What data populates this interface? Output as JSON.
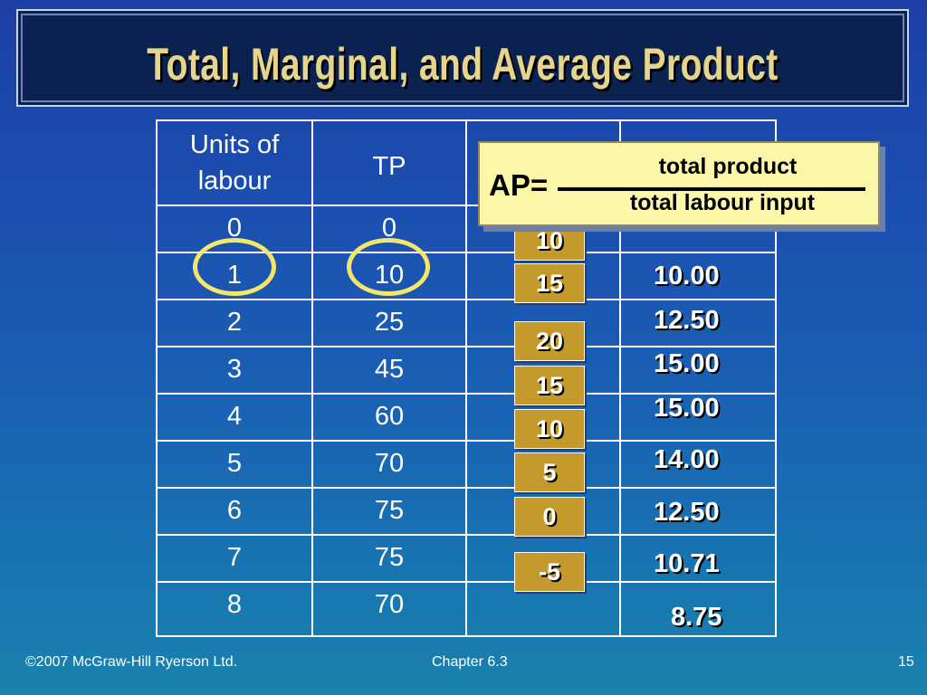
{
  "slide": {
    "title": "Total, Marginal, and Average Product",
    "footer": {
      "copyright": "©2007 McGraw-Hill Ryerson Ltd.",
      "chapter": "Chapter 6.3",
      "page_number": "15"
    }
  },
  "table": {
    "headers": [
      "Units of labour",
      "TP",
      "",
      ""
    ],
    "header_lines": [
      "Units of",
      "labour"
    ],
    "rows": [
      {
        "units": "0",
        "tp": "0"
      },
      {
        "units": "1",
        "tp": "10"
      },
      {
        "units": "2",
        "tp": "25"
      },
      {
        "units": "3",
        "tp": "45"
      },
      {
        "units": "4",
        "tp": "60"
      },
      {
        "units": "5",
        "tp": "70"
      },
      {
        "units": "6",
        "tp": "75"
      },
      {
        "units": "7",
        "tp": "75"
      },
      {
        "units": "8",
        "tp": "70"
      }
    ]
  },
  "marginal_product": [
    "10",
    "15",
    "20",
    "15",
    "10",
    "5",
    "0",
    "-5"
  ],
  "average_product": [
    "10.00",
    "12.50",
    "15.00",
    "15.00",
    "14.00",
    "12.50",
    "10.71",
    "8.75"
  ],
  "formula": {
    "lhs": "AP=",
    "numerator": "total product",
    "denominator": "total labour input"
  },
  "colors": {
    "title_text": "#e6d58a",
    "highlight_circle": "#f4e66a",
    "mp_box": "#c49a2c",
    "formula_box": "#fcf7a8"
  }
}
